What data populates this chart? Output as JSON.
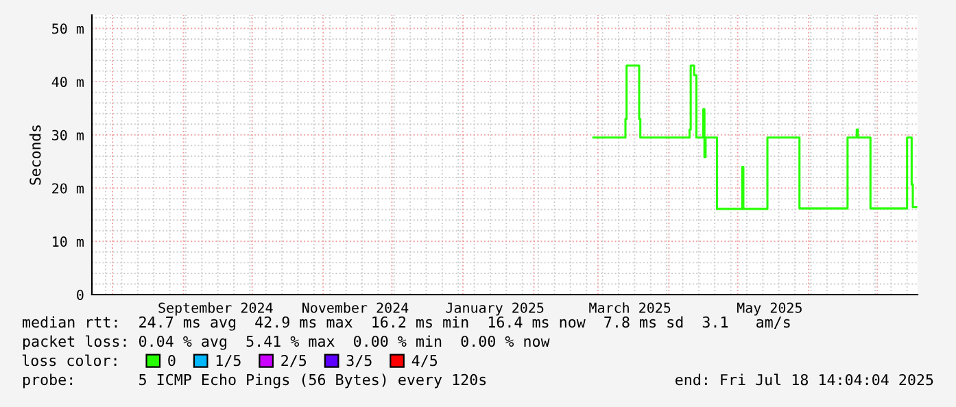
{
  "chart_data": {
    "type": "step",
    "ylabel": "Seconds",
    "legend_title": "loss color:",
    "legend": "bottom",
    "grid": true,
    "marker": "none",
    "line_style": "solid",
    "xlim": [
      "2024-07-23",
      "2025-07-18T14:04"
    ],
    "xticks": [
      {
        "value": "2024-09-15",
        "label": "September 2024"
      },
      {
        "value": "2024-11-15",
        "label": "November 2024"
      },
      {
        "value": "2025-01-15",
        "label": "January 2025"
      },
      {
        "value": "2025-03-15",
        "label": "March 2025"
      },
      {
        "value": "2025-05-15",
        "label": "May 2025"
      }
    ],
    "ylim": [
      0,
      52.5
    ],
    "yticks": [
      0,
      {
        "value": 10,
        "label": "10 m"
      },
      {
        "value": 20,
        "label": "20 m"
      },
      {
        "value": 30,
        "label": "30 m"
      },
      {
        "value": 40,
        "label": "40 m"
      },
      {
        "value": 50,
        "label": "50 m"
      }
    ],
    "series": [
      {
        "name": "0",
        "color": "#26ff00",
        "x": [
          "2025-02-27",
          "2025-03-13",
          "2025-03-13T12:00",
          "2025-03-19",
          "2025-03-19T12:00",
          "2025-04-10",
          "2025-04-10T12:00",
          "2025-04-12",
          "2025-04-13",
          "2025-04-16",
          "2025-04-16T12:00",
          "2025-04-17",
          "2025-04-22",
          "2025-05-03",
          "2025-05-03T12:00",
          "2025-05-14",
          "2025-05-28",
          "2025-06-18",
          "2025-06-22",
          "2025-06-22T12:00",
          "2025-06-28",
          "2025-07-14",
          "2025-07-16",
          "2025-07-16T12:00",
          "2025-07-18"
        ],
        "values": [
          29.5,
          33,
          43,
          33,
          29.5,
          31,
          43,
          41.2,
          29.5,
          34.8,
          25.8,
          29.5,
          16.1,
          24,
          16.1,
          29.5,
          16.2,
          29.5,
          31,
          29.5,
          16.2,
          29.5,
          20.7,
          16.4,
          16.4
        ]
      },
      {
        "name": "1/5",
        "color": "#00b8ff"
      },
      {
        "name": "2/5",
        "color": "#cc00ff"
      },
      {
        "name": "3/5",
        "color": "#5e00ff"
      },
      {
        "name": "4/5",
        "color": "#ff0000"
      }
    ],
    "annotations": [
      "median rtt:  24.7 ms avg  42.9 ms max  16.2 ms min  16.4 ms now  7.8 ms sd  3.1   am/s",
      "packet loss: 0.04 % avg  5.41 % max  0.00 % min  0.00 % now",
      "probe:       5 ICMP Echo Pings (56 Bytes) every 120s",
      "end: Fri Jul 18 14:04:04 2025"
    ]
  }
}
